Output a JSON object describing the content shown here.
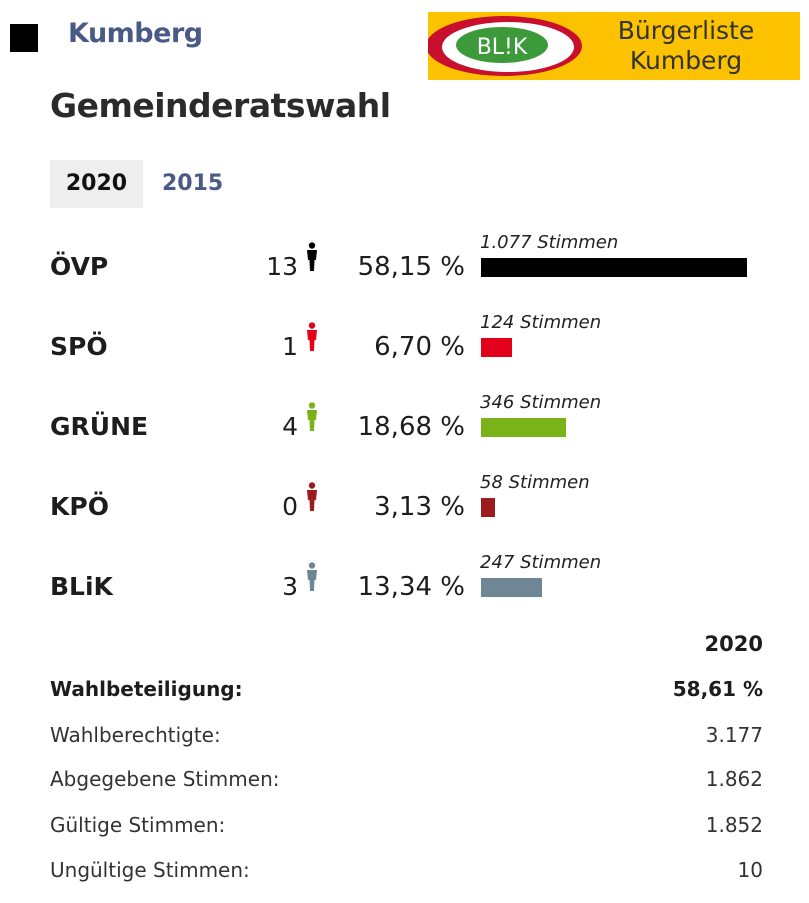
{
  "header": {
    "place": "Kumberg",
    "logo": {
      "badge": "BL!K",
      "line1": "Bürgerliste",
      "line2": "Kumberg"
    }
  },
  "title": "Gemeinderatswahl",
  "tabs": [
    {
      "label": "2020",
      "active": true
    },
    {
      "label": "2015",
      "active": false
    }
  ],
  "chart_data": {
    "type": "bar",
    "orientation": "horizontal",
    "categories": [
      "ÖVP",
      "SPÖ",
      "GRÜNE",
      "KPÖ",
      "BLiK"
    ],
    "series": [
      {
        "values": [
          1077,
          124,
          346,
          58,
          247
        ]
      }
    ],
    "rows": [
      {
        "party": "ÖVP",
        "seats": "13",
        "percent": "58,15 %",
        "votes_label": "1.077 Stimmen",
        "votes": 1077,
        "color": "#000000"
      },
      {
        "party": "SPÖ",
        "seats": "1",
        "percent": "6,70 %",
        "votes_label": "124 Stimmen",
        "votes": 124,
        "color": "#e3001b"
      },
      {
        "party": "GRÜNE",
        "seats": "4",
        "percent": "18,68 %",
        "votes_label": "346 Stimmen",
        "votes": 346,
        "color": "#7ab317"
      },
      {
        "party": "KPÖ",
        "seats": "0",
        "percent": "3,13 %",
        "votes_label": "58 Stimmen",
        "votes": 58,
        "color": "#9b1b1e"
      },
      {
        "party": "BLiK",
        "seats": "3",
        "percent": "13,34 %",
        "votes_label": "247 Stimmen",
        "votes": 247,
        "color": "#6f8795"
      }
    ],
    "xlim": [
      0,
      1077
    ],
    "grid": false,
    "legend": "none"
  },
  "stats": {
    "year": "2020",
    "rows": [
      {
        "label": "Wahlbeteiligung:",
        "value": "58,61 %",
        "bold": true
      },
      {
        "label": "Wahlberechtigte:",
        "value": "3.177",
        "bold": false
      },
      {
        "label": "Abgegebene Stimmen:",
        "value": "1.862",
        "bold": false
      },
      {
        "label": "Gültige Stimmen:",
        "value": "1.852",
        "bold": false
      },
      {
        "label": "Ungültige Stimmen:",
        "value": "10",
        "bold": false
      }
    ]
  },
  "colors": {
    "accent_blue": "#4a5a86",
    "logo_yellow": "#fcc200",
    "logo_green": "#3c9a3a",
    "logo_red": "#c8102e"
  }
}
